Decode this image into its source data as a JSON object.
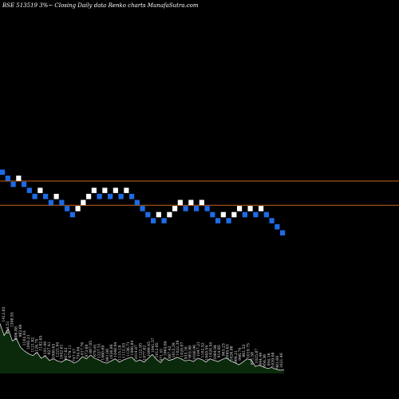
{
  "chart_data": {
    "type": "renko",
    "title": "BSE 513519 3%~ Closing Daily data Renko charts MunafaSutra.com",
    "colors": {
      "background": "#000000",
      "up_brick": "#ffffff",
      "down_brick": "#1e6be6",
      "reference_line": "#c8641e",
      "volume_fill": "#0b2a0b",
      "volume_line": "#e0e0e0",
      "text": "#ffffff"
    },
    "y_range": [
      0,
      80
    ],
    "reference_levels": [
      71,
      67
    ],
    "bricks": [
      {
        "dir": "down",
        "level": 72
      },
      {
        "dir": "down",
        "level": 71
      },
      {
        "dir": "down",
        "level": 70
      },
      {
        "dir": "up",
        "level": 71
      },
      {
        "dir": "down",
        "level": 70
      },
      {
        "dir": "down",
        "level": 69
      },
      {
        "dir": "down",
        "level": 68
      },
      {
        "dir": "up",
        "level": 69
      },
      {
        "dir": "down",
        "level": 68
      },
      {
        "dir": "down",
        "level": 67
      },
      {
        "dir": "up",
        "level": 68
      },
      {
        "dir": "down",
        "level": 67
      },
      {
        "dir": "down",
        "level": 66
      },
      {
        "dir": "down",
        "level": 65
      },
      {
        "dir": "up",
        "level": 66
      },
      {
        "dir": "up",
        "level": 67
      },
      {
        "dir": "up",
        "level": 68
      },
      {
        "dir": "up",
        "level": 69
      },
      {
        "dir": "down",
        "level": 68
      },
      {
        "dir": "up",
        "level": 69
      },
      {
        "dir": "down",
        "level": 68
      },
      {
        "dir": "up",
        "level": 69
      },
      {
        "dir": "down",
        "level": 68
      },
      {
        "dir": "up",
        "level": 69
      },
      {
        "dir": "down",
        "level": 68
      },
      {
        "dir": "down",
        "level": 67
      },
      {
        "dir": "down",
        "level": 66
      },
      {
        "dir": "down",
        "level": 65
      },
      {
        "dir": "down",
        "level": 64
      },
      {
        "dir": "up",
        "level": 65
      },
      {
        "dir": "down",
        "level": 64
      },
      {
        "dir": "up",
        "level": 65
      },
      {
        "dir": "up",
        "level": 66
      },
      {
        "dir": "up",
        "level": 67
      },
      {
        "dir": "down",
        "level": 66
      },
      {
        "dir": "up",
        "level": 67
      },
      {
        "dir": "down",
        "level": 66
      },
      {
        "dir": "up",
        "level": 67
      },
      {
        "dir": "down",
        "level": 66
      },
      {
        "dir": "down",
        "level": 65
      },
      {
        "dir": "down",
        "level": 64
      },
      {
        "dir": "up",
        "level": 65
      },
      {
        "dir": "down",
        "level": 64
      },
      {
        "dir": "up",
        "level": 65
      },
      {
        "dir": "up",
        "level": 66
      },
      {
        "dir": "down",
        "level": 65
      },
      {
        "dir": "up",
        "level": 66
      },
      {
        "dir": "down",
        "level": 65
      },
      {
        "dir": "up",
        "level": 66
      },
      {
        "dir": "down",
        "level": 65
      },
      {
        "dir": "down",
        "level": 64
      },
      {
        "dir": "down",
        "level": 63
      },
      {
        "dir": "down",
        "level": 62
      }
    ],
    "volume": [
      92,
      70,
      82,
      60,
      64,
      48,
      41,
      36,
      33,
      39,
      28,
      32,
      24,
      27,
      23,
      21,
      26,
      24,
      19,
      23,
      31,
      27,
      34,
      28,
      25,
      21,
      19,
      23,
      27,
      21,
      25,
      28,
      30,
      22,
      25,
      21,
      28,
      35,
      26,
      20,
      29,
      24,
      26,
      30,
      27,
      23,
      25,
      22,
      28,
      26,
      21,
      27,
      24,
      22,
      26,
      29,
      23,
      20,
      16,
      21,
      27,
      25,
      13,
      15,
      12,
      9,
      11,
      8,
      6,
      7
    ],
    "volume_labels": [
      "1412.83",
      "814.51",
      "1398.55",
      "806.88",
      "982.66",
      "1103.93",
      "1095.21",
      "1121.82",
      "1126.75",
      "1182.85",
      "1191.99",
      "827.41",
      "1090.63",
      "1221.94",
      "1042.61",
      "947.63",
      "679.11",
      "747.47",
      "734.84",
      "817.76",
      "973.69",
      "887.05",
      "870.61",
      "1227.51",
      "1060.69",
      "981.06",
      "1026.86",
      "1048.94",
      "1115.18",
      "1112.93",
      "1136.71",
      "1080.84",
      "1014.87",
      "1122.95",
      "1077.62",
      "1099.45",
      "1041.57",
      "1012.85",
      "971.91",
      "1064.84",
      "987.42",
      "1015.39",
      "1022.39",
      "1020.07",
      "933.16",
      "903.98",
      "1036.96",
      "1047.21",
      "1102.52",
      "1049.59",
      "1020.55",
      "1064.94",
      "914.85",
      "963.23",
      "1095.63",
      "1026.86",
      "906.21",
      "946.74",
      "861.53",
      "1019.75",
      "871.58",
      "1025.87",
      "844.49",
      "956.36",
      "954.16",
      "1039.08",
      "981.69",
      "1021.46"
    ]
  }
}
